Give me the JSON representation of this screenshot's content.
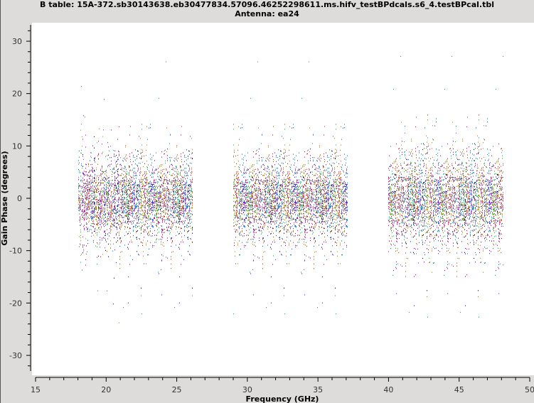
{
  "chart_data": {
    "type": "scatter",
    "title": "B table: 15A-372.sb30143638.eb30477834.57096.46252298611.ms.hifv_testBPdcals.s6_4.testBPcal.tbl",
    "subtitle": "Antenna: ea24",
    "xlabel": "Frequency (GHz)",
    "ylabel": "Gain Phase (degrees)",
    "xlim": [
      15,
      50
    ],
    "ylim": [
      -33.5,
      33.5
    ],
    "xticks": [
      15,
      20,
      25,
      30,
      35,
      40,
      45,
      50
    ],
    "yticks": [
      -30,
      -20,
      -10,
      0,
      10,
      20,
      30
    ],
    "grid": false,
    "series": [
      {
        "freq_range": [
          18.0,
          26.1
        ],
        "phase_center": 0,
        "phase_spread": 3.5
      },
      {
        "freq_range": [
          29.0,
          37.1
        ],
        "phase_center": 0,
        "phase_spread": 3.5
      },
      {
        "freq_range": [
          40.0,
          48.1
        ],
        "phase_center": 0,
        "phase_spread": 4.0
      }
    ],
    "colors": [
      "#0f5fff",
      "#e0004f",
      "#00cc44",
      "#e07800",
      "#7a00e0",
      "#111111",
      "#009090",
      "#9b59d8",
      "#70c000",
      "#b06000",
      "#d000a0",
      "#00a0e0"
    ]
  }
}
